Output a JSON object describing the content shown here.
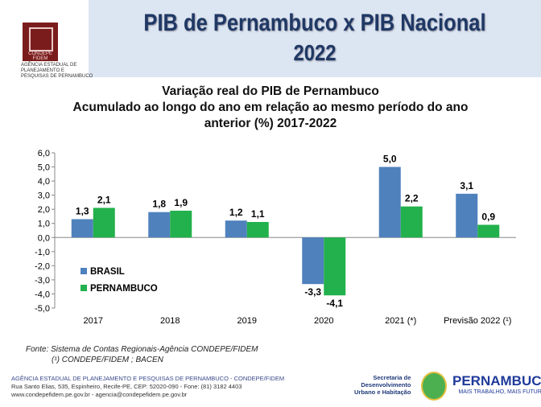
{
  "header": {
    "title_line1": "PIB de Pernambuco  x PIB Nacional",
    "title_line2": "2022",
    "logo_text": "CONDEPE FIDEM",
    "agency_lines": [
      "AGÊNCIA ESTADUAL DE",
      "PLANEJAMENTO E",
      "PESQUISAS DE PERNAMBUCO"
    ]
  },
  "chart_data": {
    "type": "bar",
    "title": [
      "Variação real do PIB de Pernambuco",
      "Acumulado ao longo do ano em relação ao mesmo período do ano",
      "anterior (%) 2017-2022"
    ],
    "categories": [
      "2017",
      "2018",
      "2019",
      "2020",
      "2021 (*)",
      "Previsão 2022 (¹)"
    ],
    "series": [
      {
        "name": "BRASIL",
        "color": "#4f81bd",
        "values": [
          1.3,
          1.8,
          1.2,
          -3.3,
          5.0,
          3.1
        ],
        "labels": [
          "1,3",
          "1,8",
          "1,2",
          "-3,3",
          "5,0",
          "3,1"
        ]
      },
      {
        "name": "PERNAMBUCO",
        "color": "#22b14c",
        "values": [
          2.1,
          1.9,
          1.1,
          -4.1,
          2.2,
          0.9
        ],
        "labels": [
          "2,1",
          "1,9",
          "1,1",
          "-4,1",
          "2,2",
          "0,9"
        ]
      }
    ],
    "ylim": [
      -5,
      6
    ],
    "yticks": [
      "6,0",
      "5,0",
      "4,0",
      "3,0",
      "2,0",
      "1,0",
      "0,0",
      "-1,0",
      "-2,0",
      "-3,0",
      "-4,0",
      "-5,0"
    ],
    "grid": false,
    "legend": "bottom-left"
  },
  "source": {
    "line1": "Fonte: Sistema de Contas Regionais-Agência CONDEPE/FIDEM",
    "line2": "(¹) CONDEPE/FIDEM ; BACEN"
  },
  "footer": {
    "agency": "AGÊNCIA ESTADUAL DE PLANEJAMENTO E PESQUISAS DE PERNAMBUCO - CONDEPE/FIDEM",
    "address": "Rua Santo Elias, 535, Espinheiro, Recife-PE, CEP: 52020-090 - Fone: (81) 3182 4403",
    "web": "www.condepefidem.pe.gov.br - agencia@condepefidem.pe.gov.br",
    "secretaria": [
      "Secretaria de",
      "Desenvolvimento",
      "Urbano e Habitação"
    ],
    "gov": "PERNAMBUCO",
    "gov_slogan": "MAIS TRABALHO, MAIS FUTURO"
  }
}
